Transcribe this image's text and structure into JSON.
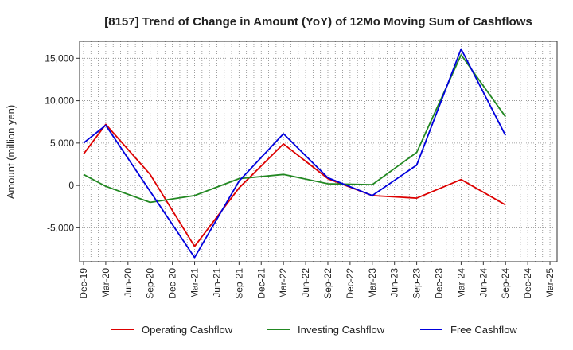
{
  "chart_data": {
    "type": "line",
    "title": "[8157]  Trend of Change in Amount (YoY) of 12Mo Moving Sum of Cashflows",
    "xlabel": "",
    "ylabel": "Amount (million yen)",
    "categories": [
      "Dec-19",
      "Mar-20",
      "Jun-20",
      "Sep-20",
      "Dec-20",
      "Mar-21",
      "Jun-21",
      "Sep-21",
      "Dec-21",
      "Mar-22",
      "Jun-22",
      "Sep-22",
      "Dec-22",
      "Mar-23",
      "Jun-23",
      "Sep-23",
      "Dec-23",
      "Mar-24",
      "Jun-24",
      "Sep-24",
      "Dec-24",
      "Mar-25"
    ],
    "ylim": [
      -9000,
      17000
    ],
    "yticks": [
      -5000,
      0,
      5000,
      10000,
      15000
    ],
    "ytick_labels": [
      "-5,000",
      "0",
      "5,000",
      "10,000",
      "15,000"
    ],
    "grid": true,
    "legend_position": "bottom",
    "series": [
      {
        "name": "Operating Cashflow",
        "color": "#dd0000",
        "values": [
          3700,
          7200,
          null,
          1300,
          null,
          -7200,
          null,
          -300,
          null,
          4900,
          null,
          800,
          null,
          -1200,
          null,
          -1500,
          null,
          700,
          null,
          -2300,
          null,
          null
        ]
      },
      {
        "name": "Investing Cashflow",
        "color": "#228822",
        "values": [
          1300,
          -100,
          null,
          -2000,
          null,
          -1200,
          null,
          800,
          null,
          1300,
          null,
          200,
          null,
          100,
          null,
          3900,
          null,
          15400,
          null,
          8100,
          null,
          null
        ]
      },
      {
        "name": "Free Cashflow",
        "color": "#0000dd",
        "values": [
          5000,
          7100,
          null,
          -700,
          null,
          -8500,
          null,
          500,
          null,
          6100,
          null,
          900,
          null,
          -1200,
          null,
          2400,
          null,
          16100,
          null,
          5900,
          null,
          null
        ]
      }
    ]
  }
}
